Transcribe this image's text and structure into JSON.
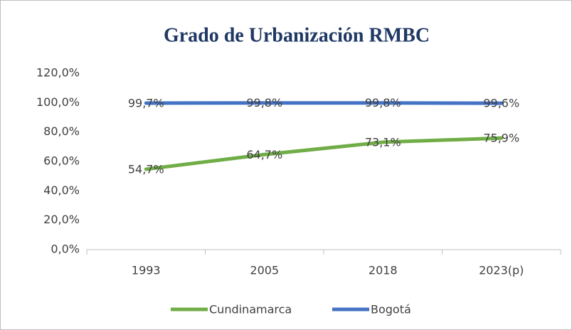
{
  "chart_data": {
    "type": "line",
    "title": "Grado de Urbanización RMBC",
    "categories": [
      "1993",
      "2005",
      "2018",
      "2023(p)"
    ],
    "series": [
      {
        "name": "Cundinamarca",
        "color": "#70ad47",
        "values": [
          54.7,
          64.7,
          73.1,
          75.9
        ],
        "value_labels": [
          "54,7%",
          "64,7%",
          "73,1%",
          "75,9%"
        ]
      },
      {
        "name": "Bogotá",
        "color": "#4472c4",
        "values": [
          99.7,
          99.8,
          99.8,
          99.6
        ],
        "value_labels": [
          "99,7%",
          "99,8%",
          "99,8%",
          "99,6%"
        ]
      }
    ],
    "ylim": [
      0,
      120
    ],
    "yticks": [
      {
        "value": 0,
        "label": "0,0%"
      },
      {
        "value": 20,
        "label": "20,0%"
      },
      {
        "value": 40,
        "label": "40,0%"
      },
      {
        "value": 60,
        "label": "60,0%"
      },
      {
        "value": 80,
        "label": "80,0%"
      },
      {
        "value": 100,
        "label": "100,0%"
      },
      {
        "value": 120,
        "label": "120,0%"
      }
    ],
    "grid": false,
    "legend": "bottom"
  }
}
